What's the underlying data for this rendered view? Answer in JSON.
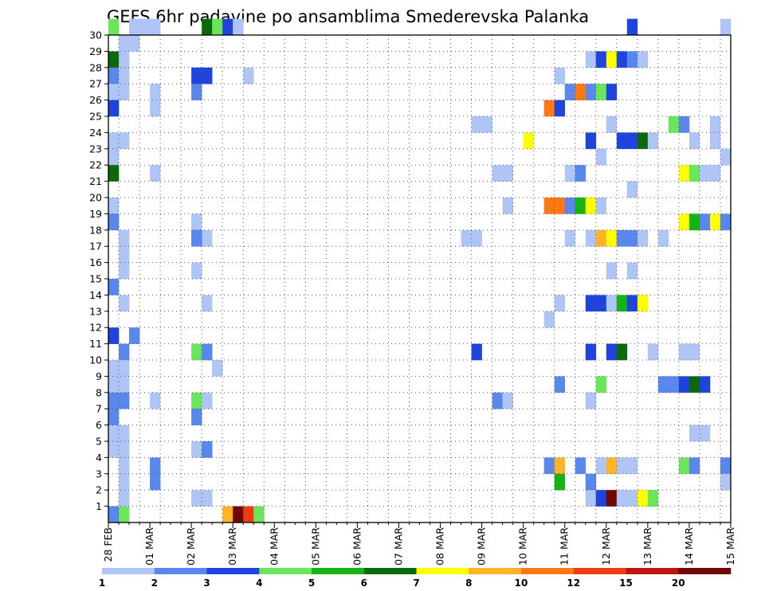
{
  "chart_data": {
    "type": "heatmap",
    "title": "GEFS 6hr padavine po ansamblima Smederevska Palanka",
    "y_ticks": [
      "1",
      "2",
      "3",
      "4",
      "5",
      "6",
      "7",
      "8",
      "9",
      "10",
      "11",
      "12",
      "13",
      "14",
      "15",
      "16",
      "17",
      "18",
      "19",
      "20",
      "21",
      "22",
      "23",
      "24",
      "25",
      "26",
      "27",
      "28",
      "29",
      "30"
    ],
    "x_ticks": [
      "28 FEB",
      "01 MAR",
      "02 MAR",
      "03 MAR",
      "04 MAR",
      "05 MAR",
      "06 MAR",
      "07 MAR",
      "08 MAR",
      "09 MAR",
      "10 MAR",
      "11 MAR",
      "12 MAR",
      "13 MAR",
      "14 MAR",
      "15 MAR"
    ],
    "x_range_steps": [
      0,
      60
    ],
    "y_range_members": [
      0,
      30
    ],
    "grid": true,
    "legend": {
      "position": "bottom",
      "labels": [
        "1",
        "2",
        "3",
        "4",
        "5",
        "6",
        "7",
        "8",
        "10",
        "12",
        "15",
        "20"
      ],
      "colors": [
        "#aec5f5",
        "#5a87ec",
        "#1e44dc",
        "#6ae65a",
        "#14b414",
        "#0a6a0a",
        "#ffff00",
        "#ffb428",
        "#ff7814",
        "#ee3c10",
        "#c0140e",
        "#700808"
      ]
    },
    "cells": [
      [
        0,
        0,
        2
      ],
      [
        1,
        0,
        4
      ],
      [
        11,
        0,
        8
      ],
      [
        12,
        0,
        12
      ],
      [
        13,
        0,
        10
      ],
      [
        14,
        0,
        4
      ],
      [
        0,
        30,
        4
      ],
      [
        2,
        30,
        1
      ],
      [
        3,
        30,
        1
      ],
      [
        4,
        30,
        1
      ],
      [
        9,
        30,
        6
      ],
      [
        10,
        30,
        4
      ],
      [
        11,
        30,
        3
      ],
      [
        12,
        30,
        1
      ],
      [
        50,
        30,
        3
      ],
      [
        59,
        30,
        1
      ],
      [
        1,
        29,
        1
      ],
      [
        2,
        29,
        1
      ],
      [
        0,
        28,
        6
      ],
      [
        1,
        28,
        1
      ],
      [
        46,
        28,
        1
      ],
      [
        47,
        28,
        3
      ],
      [
        48,
        28,
        7
      ],
      [
        49,
        28,
        3
      ],
      [
        50,
        28,
        2
      ],
      [
        51,
        28,
        1
      ],
      [
        0,
        27,
        2
      ],
      [
        1,
        27,
        1
      ],
      [
        8,
        27,
        3
      ],
      [
        9,
        27,
        3
      ],
      [
        13,
        27,
        1
      ],
      [
        43,
        27,
        1
      ],
      [
        0,
        26,
        1
      ],
      [
        1,
        26,
        1
      ],
      [
        4,
        26,
        1
      ],
      [
        8,
        26,
        2
      ],
      [
        44,
        26,
        2
      ],
      [
        45,
        26,
        9
      ],
      [
        46,
        26,
        2
      ],
      [
        47,
        26,
        4
      ],
      [
        48,
        26,
        3
      ],
      [
        0,
        25,
        3
      ],
      [
        4,
        25,
        1
      ],
      [
        42,
        25,
        9
      ],
      [
        43,
        25,
        3
      ],
      [
        35,
        24,
        1
      ],
      [
        36,
        24,
        1
      ],
      [
        48,
        24,
        1
      ],
      [
        54,
        24,
        4
      ],
      [
        55,
        24,
        2
      ],
      [
        58,
        24,
        1
      ],
      [
        0,
        23,
        1
      ],
      [
        1,
        23,
        1
      ],
      [
        40,
        23,
        7
      ],
      [
        46,
        23,
        3
      ],
      [
        49,
        23,
        3
      ],
      [
        50,
        23,
        3
      ],
      [
        51,
        23,
        6
      ],
      [
        52,
        23,
        1
      ],
      [
        56,
        23,
        1
      ],
      [
        58,
        23,
        1
      ],
      [
        0,
        22,
        1
      ],
      [
        47,
        22,
        1
      ],
      [
        59,
        22,
        1
      ],
      [
        0,
        21,
        6
      ],
      [
        4,
        21,
        1
      ],
      [
        37,
        21,
        1
      ],
      [
        38,
        21,
        1
      ],
      [
        44,
        21,
        1
      ],
      [
        45,
        21,
        2
      ],
      [
        55,
        21,
        7
      ],
      [
        56,
        21,
        4
      ],
      [
        57,
        21,
        1
      ],
      [
        58,
        21,
        1
      ],
      [
        50,
        20,
        1
      ],
      [
        0,
        19,
        1
      ],
      [
        38,
        19,
        1
      ],
      [
        42,
        19,
        9
      ],
      [
        43,
        19,
        9
      ],
      [
        44,
        19,
        2
      ],
      [
        45,
        19,
        5
      ],
      [
        46,
        19,
        7
      ],
      [
        47,
        19,
        1
      ],
      [
        0,
        18,
        2
      ],
      [
        8,
        18,
        1
      ],
      [
        55,
        18,
        7
      ],
      [
        56,
        18,
        5
      ],
      [
        57,
        18,
        2
      ],
      [
        58,
        18,
        7
      ],
      [
        59,
        18,
        2
      ],
      [
        1,
        17,
        1
      ],
      [
        8,
        17,
        2
      ],
      [
        9,
        17,
        1
      ],
      [
        34,
        17,
        1
      ],
      [
        35,
        17,
        1
      ],
      [
        44,
        17,
        1
      ],
      [
        46,
        17,
        1
      ],
      [
        47,
        17,
        8
      ],
      [
        48,
        17,
        7
      ],
      [
        49,
        17,
        2
      ],
      [
        50,
        17,
        2
      ],
      [
        51,
        17,
        1
      ],
      [
        53,
        17,
        1
      ],
      [
        1,
        16,
        1
      ],
      [
        1,
        15,
        1
      ],
      [
        8,
        15,
        1
      ],
      [
        48,
        15,
        1
      ],
      [
        50,
        15,
        1
      ],
      [
        0,
        14,
        2
      ],
      [
        1,
        13,
        1
      ],
      [
        9,
        13,
        1
      ],
      [
        43,
        13,
        1
      ],
      [
        46,
        13,
        3
      ],
      [
        47,
        13,
        3
      ],
      [
        48,
        13,
        1
      ],
      [
        49,
        13,
        5
      ],
      [
        50,
        13,
        3
      ],
      [
        51,
        13,
        7
      ],
      [
        42,
        12,
        1
      ],
      [
        0,
        11,
        3
      ],
      [
        2,
        11,
        2
      ],
      [
        1,
        10,
        2
      ],
      [
        8,
        10,
        4
      ],
      [
        9,
        10,
        2
      ],
      [
        35,
        10,
        3
      ],
      [
        46,
        10,
        3
      ],
      [
        48,
        10,
        3
      ],
      [
        49,
        10,
        6
      ],
      [
        52,
        10,
        1
      ],
      [
        55,
        10,
        1
      ],
      [
        56,
        10,
        1
      ],
      [
        0,
        9,
        1
      ],
      [
        1,
        9,
        1
      ],
      [
        10,
        9,
        1
      ],
      [
        0,
        8,
        1
      ],
      [
        1,
        8,
        1
      ],
      [
        43,
        8,
        2
      ],
      [
        47,
        8,
        4
      ],
      [
        53,
        8,
        2
      ],
      [
        54,
        8,
        2
      ],
      [
        55,
        8,
        3
      ],
      [
        56,
        8,
        6
      ],
      [
        57,
        8,
        3
      ],
      [
        0,
        7,
        2
      ],
      [
        1,
        7,
        2
      ],
      [
        4,
        7,
        1
      ],
      [
        8,
        7,
        4
      ],
      [
        9,
        7,
        1
      ],
      [
        37,
        7,
        2
      ],
      [
        38,
        7,
        1
      ],
      [
        46,
        7,
        1
      ],
      [
        8,
        6,
        2
      ],
      [
        1,
        5,
        1
      ],
      [
        56,
        5,
        1
      ],
      [
        57,
        5,
        1
      ],
      [
        0,
        4,
        1
      ],
      [
        1,
        4,
        1
      ],
      [
        8,
        4,
        1
      ],
      [
        9,
        4,
        2
      ],
      [
        1,
        3,
        1
      ],
      [
        4,
        3,
        2
      ],
      [
        42,
        3,
        2
      ],
      [
        43,
        3,
        8
      ],
      [
        45,
        3,
        2
      ],
      [
        47,
        3,
        1
      ],
      [
        48,
        3,
        8
      ],
      [
        49,
        3,
        1
      ],
      [
        50,
        3,
        1
      ],
      [
        55,
        3,
        4
      ],
      [
        56,
        3,
        2
      ],
      [
        59,
        3,
        2
      ],
      [
        1,
        2,
        1
      ],
      [
        4,
        2,
        2
      ],
      [
        43,
        2,
        5
      ],
      [
        46,
        2,
        2
      ],
      [
        59,
        2,
        1
      ],
      [
        1,
        1,
        1
      ],
      [
        8,
        1,
        1
      ],
      [
        9,
        1,
        1
      ],
      [
        46,
        1,
        1
      ],
      [
        47,
        1,
        3
      ],
      [
        48,
        1,
        12
      ],
      [
        49,
        1,
        1
      ],
      [
        50,
        1,
        1
      ],
      [
        51,
        1,
        7
      ],
      [
        52,
        1,
        4
      ],
      [
        1,
        27,
        1
      ],
      [
        8,
        17,
        2
      ],
      [
        0,
        5,
        1
      ],
      [
        0,
        6,
        2
      ]
    ]
  }
}
